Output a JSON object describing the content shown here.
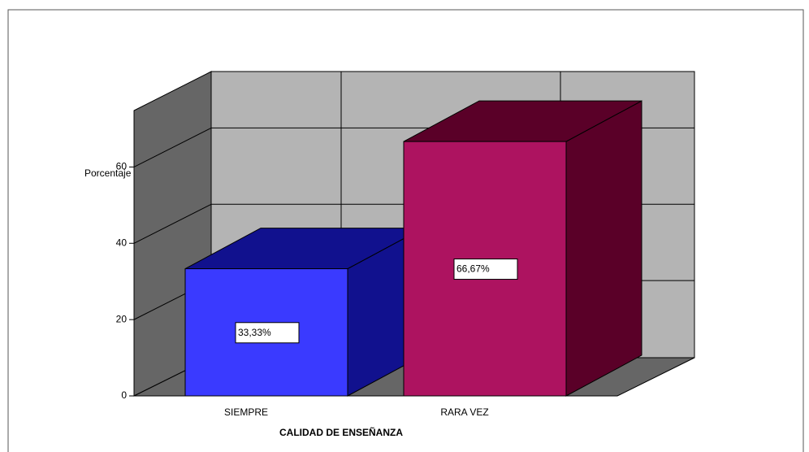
{
  "chart_data": {
    "type": "bar3d",
    "x_label": "CALIDAD DE ENSEÑANZA",
    "y_label": "Porcentaje",
    "categories": [
      "SIEMPRE",
      "RARA VEZ"
    ],
    "values": [
      33.33,
      66.67
    ],
    "value_labels": [
      "33,33%",
      "66,67%"
    ],
    "colors": [
      "#3a3aff",
      "#ad1360"
    ],
    "side_colors": [
      "#11118e",
      "#5a0028"
    ],
    "ylim": [
      0,
      75
    ],
    "yticks": [
      0,
      20,
      40,
      60
    ],
    "grid": true
  }
}
